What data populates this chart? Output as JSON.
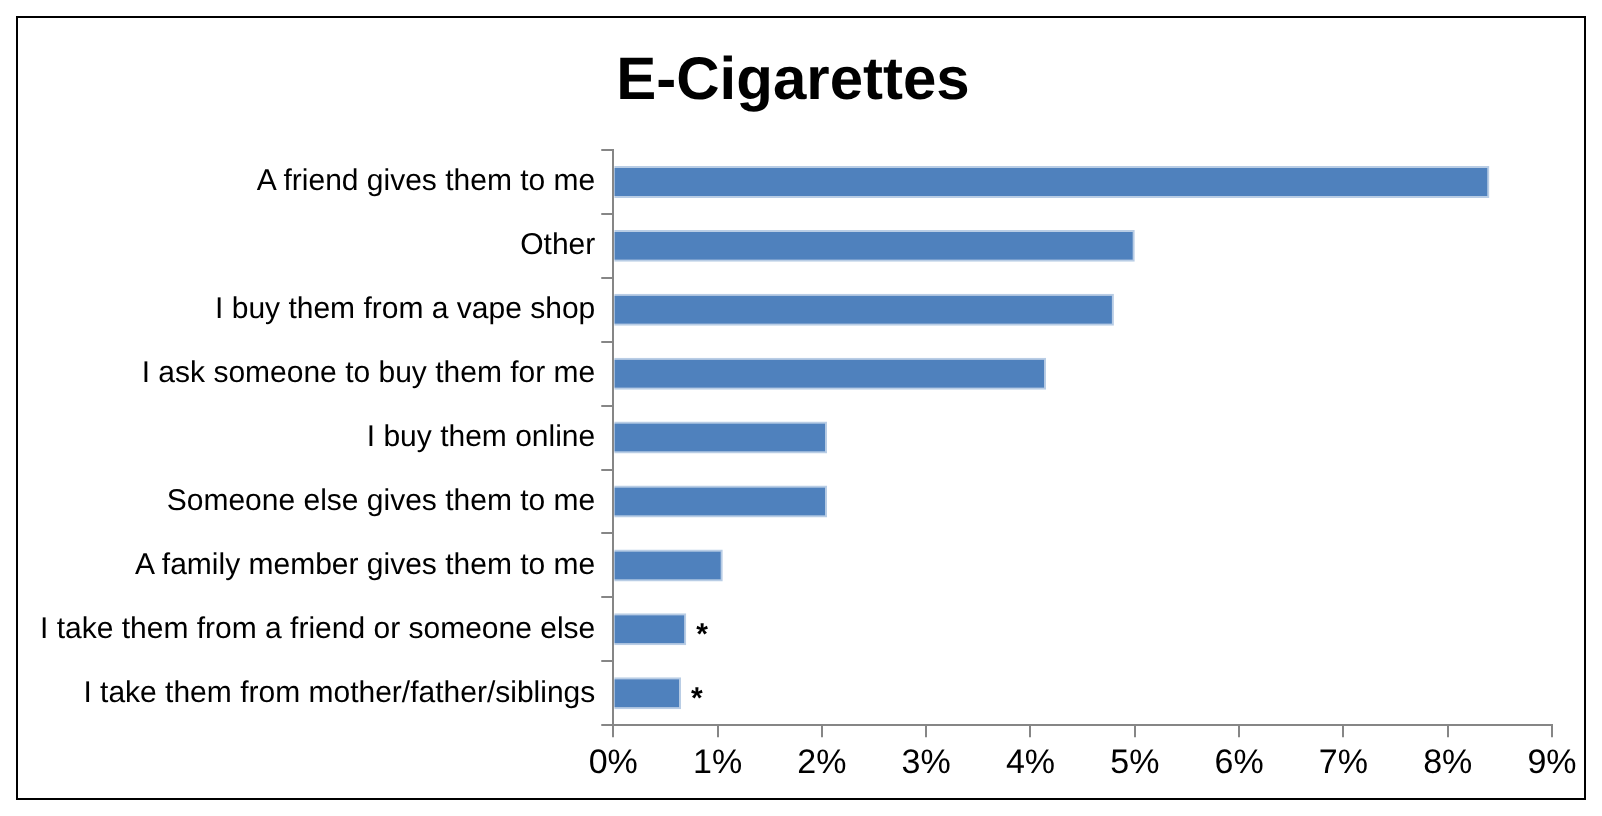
{
  "chart_data": {
    "type": "bar",
    "orientation": "horizontal",
    "title": "E-Cigarettes",
    "categories": [
      "A friend gives them to me",
      "Other",
      "I buy them from a vape shop",
      "I ask someone to buy them for me",
      "I buy them online",
      "Someone else gives them to me",
      "A family member gives them to me",
      "I take them from a friend or someone else",
      "I take them from mother/father/siblings"
    ],
    "values": [
      8.4,
      5.0,
      4.8,
      4.15,
      2.05,
      2.05,
      1.05,
      0.7,
      0.65
    ],
    "color": "#4f81bd",
    "xlim": [
      0,
      9
    ],
    "xticks": [
      {
        "value": 0,
        "label": "0%"
      },
      {
        "value": 1,
        "label": "1%"
      },
      {
        "value": 2,
        "label": "2%"
      },
      {
        "value": 3,
        "label": "3%"
      },
      {
        "value": 4,
        "label": "4%"
      },
      {
        "value": 5,
        "label": "5%"
      },
      {
        "value": 6,
        "label": "6%"
      },
      {
        "value": 7,
        "label": "7%"
      },
      {
        "value": 8,
        "label": "8%"
      },
      {
        "value": 9,
        "label": "9%"
      }
    ],
    "grid": false,
    "legend": false,
    "annotations": [
      {
        "text": "*",
        "x": 0.7,
        "y": "I take them from a friend or someone else"
      },
      {
        "text": "*",
        "x": 0.65,
        "y": "I take them from mother/father/siblings"
      }
    ]
  }
}
